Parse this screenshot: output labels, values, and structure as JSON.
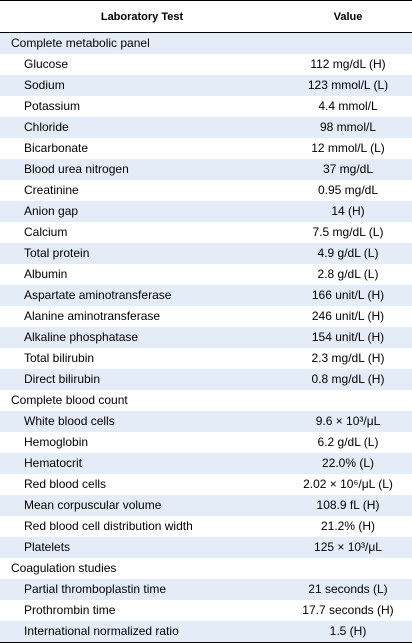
{
  "header": {
    "test": "Laboratory Test",
    "value": "Value"
  },
  "sections": [
    {
      "name": "Complete metabolic panel",
      "rows": [
        {
          "test": "Glucose",
          "value": "112 mg/dL (H)"
        },
        {
          "test": "Sodium",
          "value": "123 mmol/L (L)"
        },
        {
          "test": "Potassium",
          "value": "4.4 mmol/L"
        },
        {
          "test": "Chloride",
          "value": "98 mmol/L"
        },
        {
          "test": "Bicarbonate",
          "value": "12 mmol/L (L)"
        },
        {
          "test": "Blood urea nitrogen",
          "value": "37 mg/dL"
        },
        {
          "test": "Creatinine",
          "value": "0.95 mg/dL"
        },
        {
          "test": "Anion gap",
          "value": "14 (H)"
        },
        {
          "test": "Calcium",
          "value": "7.5 mg/dL (L)"
        },
        {
          "test": "Total protein",
          "value": "4.9 g/dL (L)"
        },
        {
          "test": "Albumin",
          "value": "2.8 g/dL (L)"
        },
        {
          "test": "Aspartate aminotransferase",
          "value": "166 unit/L (H)"
        },
        {
          "test": "Alanine aminotransferase",
          "value": "246 unit/L (H)"
        },
        {
          "test": "Alkaline phosphatase",
          "value": "154 unit/L (H)"
        },
        {
          "test": "Total bilirubin",
          "value": "2.3 mg/dL (H)"
        },
        {
          "test": "Direct bilirubin",
          "value": "0.8 mg/dL (H)"
        }
      ]
    },
    {
      "name": "Complete blood count",
      "rows": [
        {
          "test": "White blood cells",
          "value": "9.6 × 10³/μL"
        },
        {
          "test": "Hemoglobin",
          "value": "6.2 g/dL (L)"
        },
        {
          "test": "Hematocrit",
          "value": "22.0% (L)"
        },
        {
          "test": "Red blood cells",
          "value": "2.02 × 10⁶/μL (L)"
        },
        {
          "test": "Mean corpuscular volume",
          "value": "108.9 fL (H)"
        },
        {
          "test": "Red blood cell distribution width",
          "value": "21.2% (H)"
        },
        {
          "test": "Platelets",
          "value": "125 × 10³/μL"
        }
      ]
    },
    {
      "name": "Coagulation studies",
      "rows": [
        {
          "test": "Partial thromboplastin time",
          "value": "21 seconds (L)"
        },
        {
          "test": "Prothrombin time",
          "value": "17.7 seconds (H)"
        },
        {
          "test": "International normalized ratio",
          "value": "1.5 (H)"
        }
      ]
    }
  ]
}
